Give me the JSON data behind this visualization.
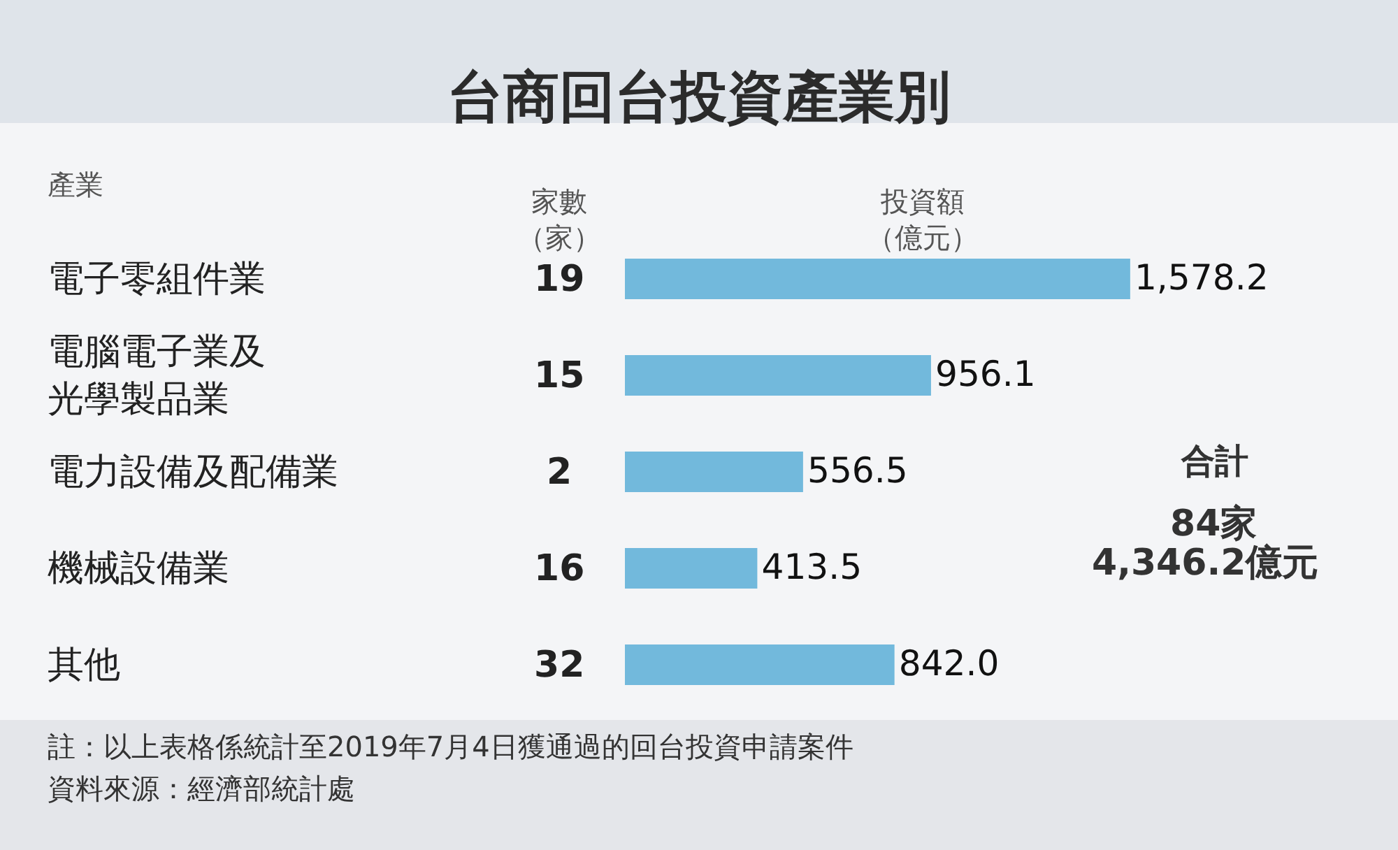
{
  "chart_data": {
    "type": "bar",
    "orientation": "horizontal",
    "title": "台商回台投資產業別",
    "ylabel": "產業",
    "categories": [
      "電子零組件業",
      "電腦電子業及光學製品業",
      "電力設備及配備業",
      "機械設備業",
      "其他"
    ],
    "values": [
      1578.2,
      956.1,
      556.5,
      413.5,
      842.0
    ],
    "value_labels": [
      "1,578.2",
      "956.1",
      "556.5",
      "413.5",
      "842.0"
    ],
    "color": "#72b9dc",
    "annotations": [
      "家數（家）",
      "投資額（億元）",
      "19",
      "15",
      "2",
      "16",
      "32",
      "合計",
      "84家",
      "4,346.2億元",
      "註：以上表格係統計至2019年7月4日獲通過的回台投資申請案件",
      "資料來源：經濟部統計處"
    ]
  }
}
